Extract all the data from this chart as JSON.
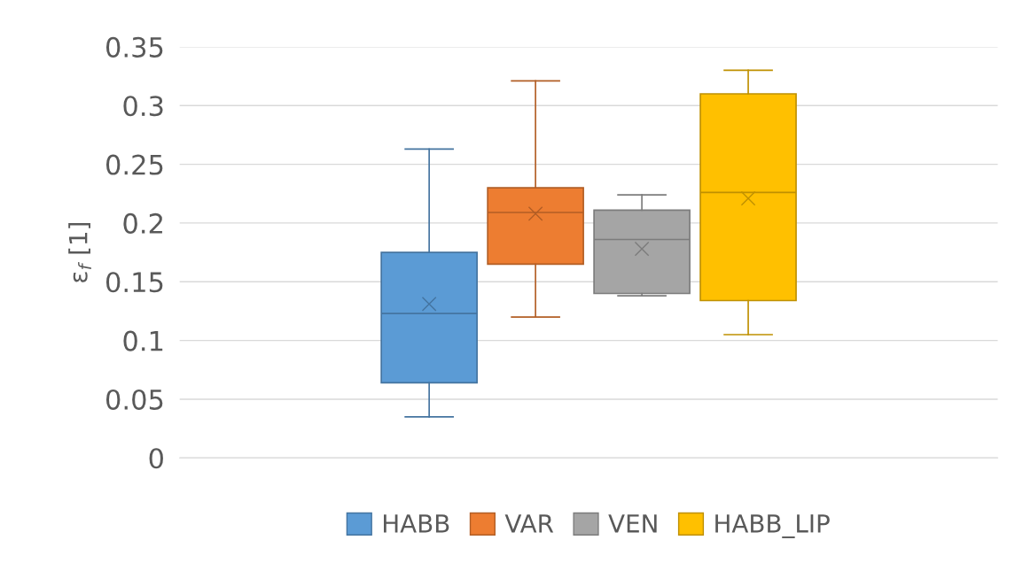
{
  "chart_data": {
    "type": "box",
    "ylabel": "ε$_{f}$ [1]",
    "categories": [
      null
    ],
    "series": [
      {
        "name": "HABB",
        "color": "#5b9bd5",
        "boxes": [
          {
            "low": 0.035,
            "q1": 0.064,
            "median": 0.123,
            "q3": 0.175,
            "high": 0.263,
            "mean": 0.131
          }
        ]
      },
      {
        "name": "VAR",
        "color": "#ed7d31",
        "boxes": [
          {
            "low": 0.12,
            "q1": 0.165,
            "median": 0.209,
            "q3": 0.23,
            "high": 0.321,
            "mean": 0.208
          }
        ]
      },
      {
        "name": "VEN",
        "color": "#a5a5a5",
        "boxes": [
          {
            "low": 0.138,
            "q1": 0.14,
            "median": 0.186,
            "q3": 0.211,
            "high": 0.224,
            "mean": 0.178
          }
        ]
      },
      {
        "name": "HABB_LIP",
        "color": "#ffc000",
        "boxes": [
          {
            "low": 0.105,
            "q1": 0.134,
            "median": 0.226,
            "q3": 0.31,
            "high": 0.33,
            "mean": 0.221
          }
        ]
      }
    ],
    "ylim": [
      0,
      0.35
    ],
    "yticks": [
      0,
      0.05,
      0.1,
      0.15,
      0.2,
      0.25,
      0.3,
      0.35
    ],
    "grid": "y",
    "legend": "bottom",
    "marker": "cross"
  }
}
